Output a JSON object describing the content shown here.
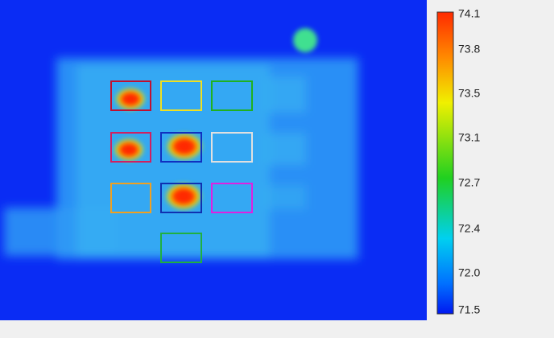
{
  "colorbar": {
    "labels": [
      "74.1",
      "73.8",
      "73.5",
      "73.1",
      "72.7",
      "72.4",
      "72.0",
      "71.5"
    ]
  }
}
